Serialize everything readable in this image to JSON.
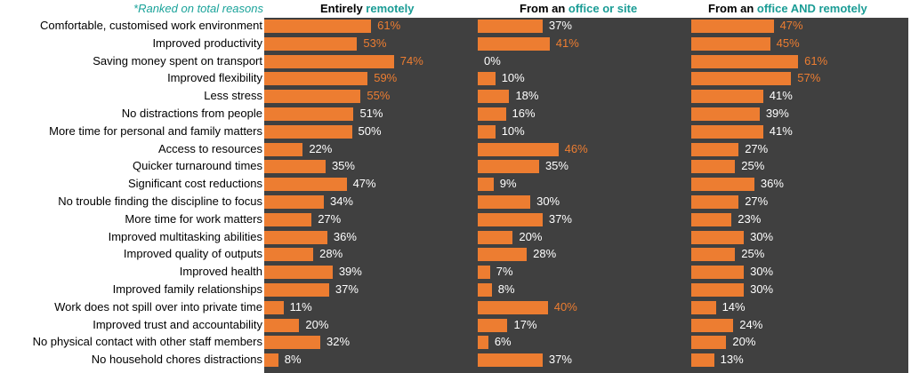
{
  "chart_data": {
    "type": "bar",
    "note": "*Ranked on total reasons",
    "panel_headers": [
      {
        "prefix": "Entirely ",
        "highlight": "remotely"
      },
      {
        "prefix": "From an ",
        "highlight": "office or site"
      },
      {
        "prefix": "From an ",
        "highlight": "office AND remotely"
      }
    ],
    "categories": [
      "Comfortable, customised work environment",
      "Improved productivity",
      "Saving money spent on transport",
      "Improved flexibility",
      "Less stress",
      "No distractions from people",
      "More time for personal and family matters",
      "Access to resources",
      "Quicker turnaround times",
      "Significant cost reductions",
      "No trouble finding the discipline to focus",
      "More time for work matters",
      "Improved multitasking abilities",
      "Improved quality of outputs",
      "Improved health",
      "Improved family relationships",
      "Work does not spill over into private time",
      "Improved trust and accountability",
      "No physical contact with other staff members",
      "No household chores distractions"
    ],
    "series": [
      {
        "values": [
          61,
          53,
          74,
          59,
          55,
          51,
          50,
          22,
          35,
          47,
          34,
          27,
          36,
          28,
          39,
          37,
          11,
          20,
          32,
          8
        ],
        "highlighted": [
          true,
          true,
          true,
          true,
          true,
          false,
          false,
          false,
          false,
          false,
          false,
          false,
          false,
          false,
          false,
          false,
          false,
          false,
          false,
          false
        ]
      },
      {
        "values": [
          37,
          41,
          0,
          10,
          18,
          16,
          10,
          46,
          35,
          9,
          30,
          37,
          20,
          28,
          7,
          8,
          40,
          17,
          6,
          37
        ],
        "highlighted": [
          false,
          true,
          false,
          false,
          false,
          false,
          false,
          true,
          false,
          false,
          false,
          false,
          false,
          false,
          false,
          false,
          true,
          false,
          false,
          false
        ]
      },
      {
        "values": [
          47,
          45,
          61,
          57,
          41,
          39,
          41,
          27,
          25,
          36,
          27,
          23,
          30,
          25,
          30,
          30,
          14,
          24,
          20,
          13
        ],
        "highlighted": [
          true,
          true,
          true,
          true,
          false,
          false,
          false,
          false,
          false,
          false,
          false,
          false,
          false,
          false,
          false,
          false,
          false,
          false,
          false,
          false
        ]
      }
    ],
    "value_suffix": "%",
    "xlim": [
      0,
      100
    ],
    "colors": {
      "bar": "#ed7d31",
      "panel_background": "#404040",
      "label_default": "#ffffff",
      "label_highlight": "#ed7d31",
      "header_highlight": "#1a9c95"
    }
  }
}
